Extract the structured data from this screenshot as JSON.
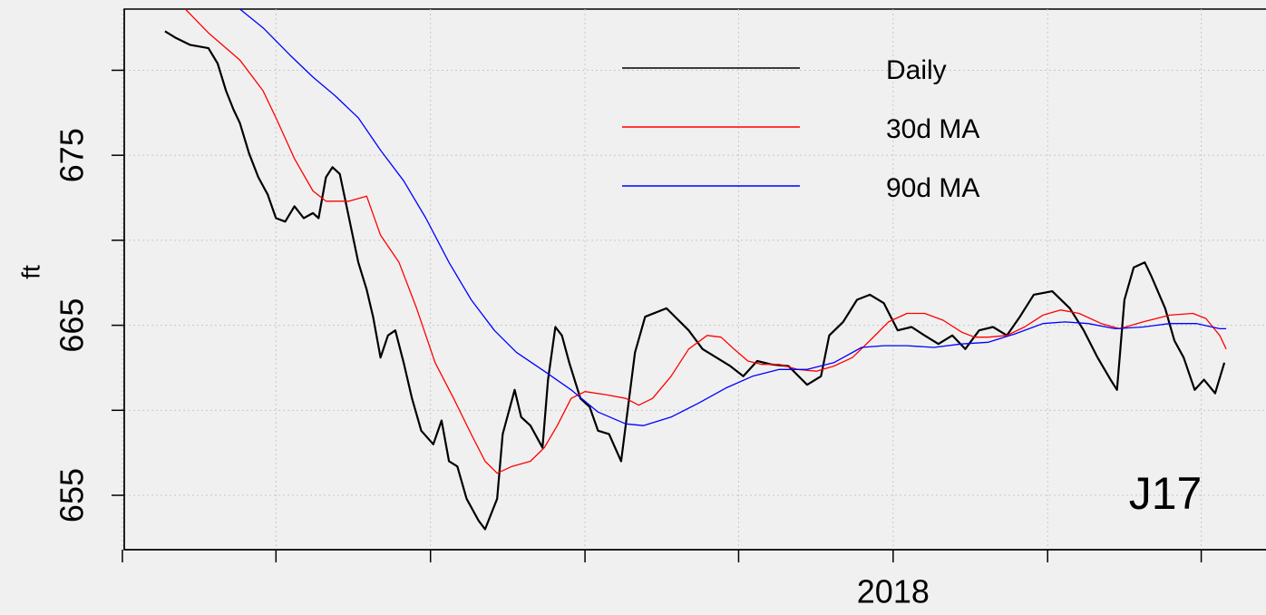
{
  "chart_data": {
    "type": "line",
    "y_label": "ft",
    "annotation": "J17",
    "xlim": [
      2017.169,
      2018.403
    ],
    "xticks": [
      2018
    ],
    "minor_xticks": [
      2017.167,
      2017.333,
      2017.5,
      2017.667,
      2017.833,
      2018.167,
      2018.333
    ],
    "ylim": [
      651.8,
      683.6
    ],
    "yticks": [
      655,
      665,
      675
    ],
    "minor_yticks": [
      660,
      670,
      680
    ],
    "grid": true,
    "legend": "top-right",
    "series": [
      {
        "name": "Daily",
        "color": "#000000",
        "x": [
          2017.213,
          2017.225,
          2017.24,
          2017.26,
          2017.27,
          2017.279,
          2017.287,
          2017.294,
          2017.304,
          2017.314,
          2017.324,
          2017.333,
          2017.343,
          2017.353,
          2017.363,
          2017.373,
          2017.379,
          2017.387,
          2017.394,
          2017.402,
          2017.412,
          2017.422,
          2017.431,
          2017.438,
          2017.446,
          2017.454,
          2017.462,
          2017.471,
          2017.48,
          2017.49,
          2017.503,
          2017.512,
          2017.52,
          2017.529,
          2017.539,
          2017.552,
          2017.559,
          2017.572,
          2017.578,
          2017.591,
          2017.598,
          2017.608,
          2017.621,
          2017.627,
          2017.635,
          2017.642,
          2017.65,
          2017.662,
          2017.672,
          2017.681,
          2017.693,
          2017.706,
          2017.721,
          2017.732,
          2017.755,
          2017.779,
          2017.794,
          2017.809,
          2017.824,
          2017.838,
          2017.853,
          2017.868,
          2017.887,
          2017.907,
          2017.922,
          2017.931,
          2017.946,
          2017.961,
          2017.975,
          2017.99,
          2018.005,
          2018.02,
          2018.034,
          2018.049,
          2018.064,
          2018.078,
          2018.093,
          2018.108,
          2018.123,
          2018.137,
          2018.152,
          2018.172,
          2018.191,
          2018.206,
          2018.221,
          2018.235,
          2018.242,
          2018.25,
          2018.26,
          2018.272,
          2018.279,
          2018.294,
          2018.304,
          2018.314,
          2018.326,
          2018.336,
          2018.348,
          2018.358
        ],
        "values": [
          682.3,
          681.9,
          681.5,
          681.3,
          680.4,
          678.8,
          677.7,
          676.9,
          675.1,
          673.7,
          672.7,
          671.3,
          671.1,
          672.0,
          671.3,
          671.6,
          671.3,
          673.7,
          674.3,
          673.9,
          671.3,
          668.7,
          667.1,
          665.5,
          663.1,
          664.4,
          664.7,
          662.8,
          660.7,
          658.8,
          658.0,
          659.4,
          657.0,
          656.7,
          654.8,
          653.5,
          653.0,
          654.8,
          658.6,
          661.2,
          659.6,
          659.1,
          657.8,
          661.8,
          664.9,
          664.4,
          662.8,
          660.7,
          660.2,
          658.8,
          658.6,
          657.0,
          663.4,
          665.5,
          666.0,
          664.7,
          663.6,
          663.1,
          662.6,
          662.0,
          662.9,
          662.7,
          662.6,
          661.5,
          662.0,
          664.4,
          665.2,
          666.5,
          666.8,
          666.3,
          664.7,
          664.9,
          664.4,
          663.9,
          664.4,
          663.6,
          664.7,
          664.9,
          664.4,
          665.5,
          666.8,
          667.0,
          666.0,
          664.7,
          663.1,
          661.8,
          661.2,
          666.5,
          668.4,
          668.7,
          667.9,
          666.0,
          664.1,
          663.1,
          661.2,
          661.8,
          661.0,
          662.8
        ]
      },
      {
        "name": "30d MA",
        "color": "#ff0000",
        "x": [
          2017.235,
          2017.26,
          2017.294,
          2017.319,
          2017.333,
          2017.353,
          2017.373,
          2017.387,
          2017.412,
          2017.431,
          2017.446,
          2017.466,
          2017.485,
          2017.505,
          2017.525,
          2017.544,
          2017.559,
          2017.572,
          2017.588,
          2017.608,
          2017.623,
          2017.637,
          2017.652,
          2017.667,
          2017.691,
          2017.711,
          2017.725,
          2017.74,
          2017.76,
          2017.779,
          2017.799,
          2017.814,
          2017.828,
          2017.843,
          2017.858,
          2017.877,
          2017.897,
          2017.917,
          2017.936,
          2017.956,
          2017.975,
          2017.995,
          2018.015,
          2018.034,
          2018.054,
          2018.074,
          2018.088,
          2018.103,
          2018.123,
          2018.142,
          2018.162,
          2018.181,
          2018.201,
          2018.225,
          2018.245,
          2018.27,
          2018.299,
          2018.324,
          2018.338,
          2018.353,
          2018.36
        ],
        "values": [
          683.6,
          682.2,
          680.6,
          678.8,
          677.2,
          674.8,
          672.9,
          672.3,
          672.3,
          672.6,
          670.3,
          668.7,
          666.0,
          662.8,
          660.7,
          658.6,
          657.0,
          656.3,
          656.7,
          657.0,
          657.8,
          659.1,
          660.7,
          661.1,
          660.9,
          660.7,
          660.3,
          660.7,
          662.0,
          663.6,
          664.4,
          664.3,
          663.6,
          662.9,
          662.7,
          662.7,
          662.4,
          662.3,
          662.6,
          663.1,
          664.1,
          665.2,
          665.7,
          665.7,
          665.3,
          664.6,
          664.3,
          664.3,
          664.4,
          664.9,
          665.6,
          665.9,
          665.7,
          665.1,
          664.8,
          665.2,
          665.6,
          665.7,
          665.4,
          664.4,
          663.6
        ]
      },
      {
        "name": "90d MA",
        "color": "#0000ff",
        "x": [
          2017.294,
          2017.319,
          2017.348,
          2017.373,
          2017.397,
          2017.422,
          2017.446,
          2017.471,
          2017.495,
          2017.52,
          2017.544,
          2017.569,
          2017.593,
          2017.623,
          2017.652,
          2017.681,
          2017.711,
          2017.73,
          2017.76,
          2017.789,
          2017.819,
          2017.848,
          2017.877,
          2017.907,
          2017.936,
          2017.966,
          2017.99,
          2018.015,
          2018.044,
          2018.074,
          2018.103,
          2018.132,
          2018.162,
          2018.186,
          2018.211,
          2018.24,
          2018.27,
          2018.299,
          2018.328,
          2018.353,
          2018.36
        ],
        "values": [
          683.6,
          682.5,
          680.9,
          679.6,
          678.5,
          677.2,
          675.3,
          673.5,
          671.3,
          668.7,
          666.5,
          664.7,
          663.4,
          662.3,
          661.2,
          659.9,
          659.2,
          659.1,
          659.6,
          660.4,
          661.3,
          662.0,
          662.4,
          662.4,
          662.8,
          663.7,
          663.8,
          663.8,
          663.7,
          663.9,
          664.0,
          664.5,
          665.1,
          665.2,
          665.1,
          664.8,
          664.9,
          665.1,
          665.1,
          664.8,
          664.8
        ]
      }
    ]
  }
}
